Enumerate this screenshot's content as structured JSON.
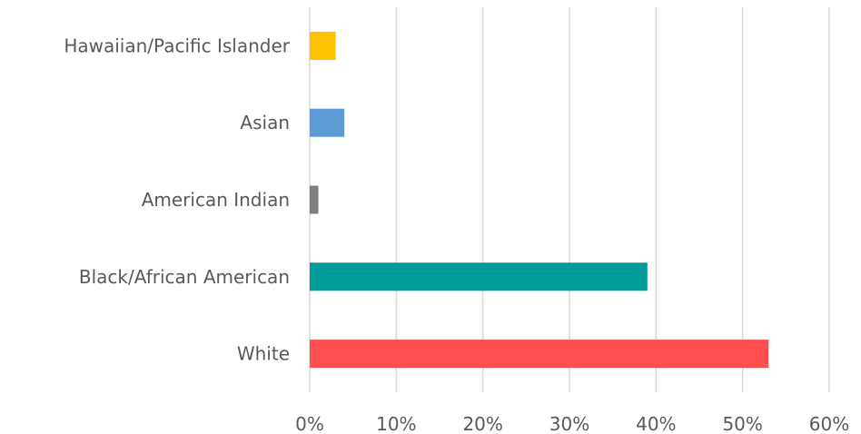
{
  "chart_data": {
    "type": "bar",
    "orientation": "horizontal",
    "title": "",
    "xlabel": "",
    "ylabel": "",
    "categories": [
      "Hawaiian/Pacific Islander",
      "Asian",
      "American Indian",
      "Black/African American",
      "White"
    ],
    "values": [
      3,
      4,
      1,
      39,
      53
    ],
    "unit": "%",
    "xlim": [
      0,
      60
    ],
    "x_ticks": [
      "0%",
      "10%",
      "20%",
      "30%",
      "40%",
      "50%",
      "60%"
    ],
    "bar_colors": [
      "#ffc000",
      "#5b9bd5",
      "#7f7f7f",
      "#009c9a",
      "#ff4f4f"
    ],
    "grid": true,
    "legend": "none"
  }
}
